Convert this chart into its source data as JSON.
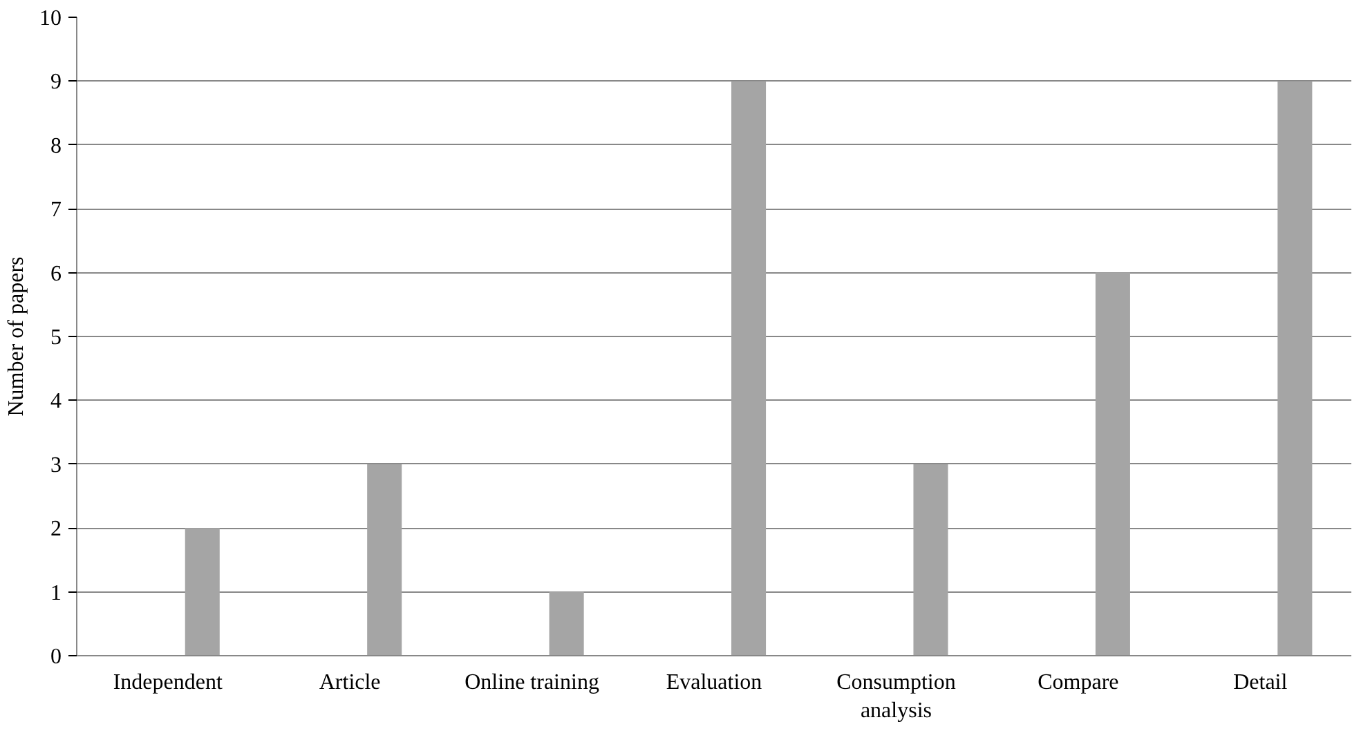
{
  "chart_data": {
    "type": "bar",
    "ylabel": "Number of papers",
    "categories": [
      "Independent",
      "Article",
      "Online training",
      "Evaluation",
      "Consumption analysis",
      "Compare",
      "Detail"
    ],
    "series": [
      {
        "values": [
          null,
          null,
          null,
          null,
          null,
          null,
          null
        ]
      },
      {
        "color": "#a5a5a5",
        "values": [
          2,
          3,
          1,
          9,
          3,
          6,
          9
        ]
      }
    ],
    "ylim": [
      0,
      10
    ],
    "yticks": [
      0,
      1,
      2,
      3,
      4,
      5,
      6,
      7,
      8,
      9,
      10
    ],
    "grid": "y"
  }
}
